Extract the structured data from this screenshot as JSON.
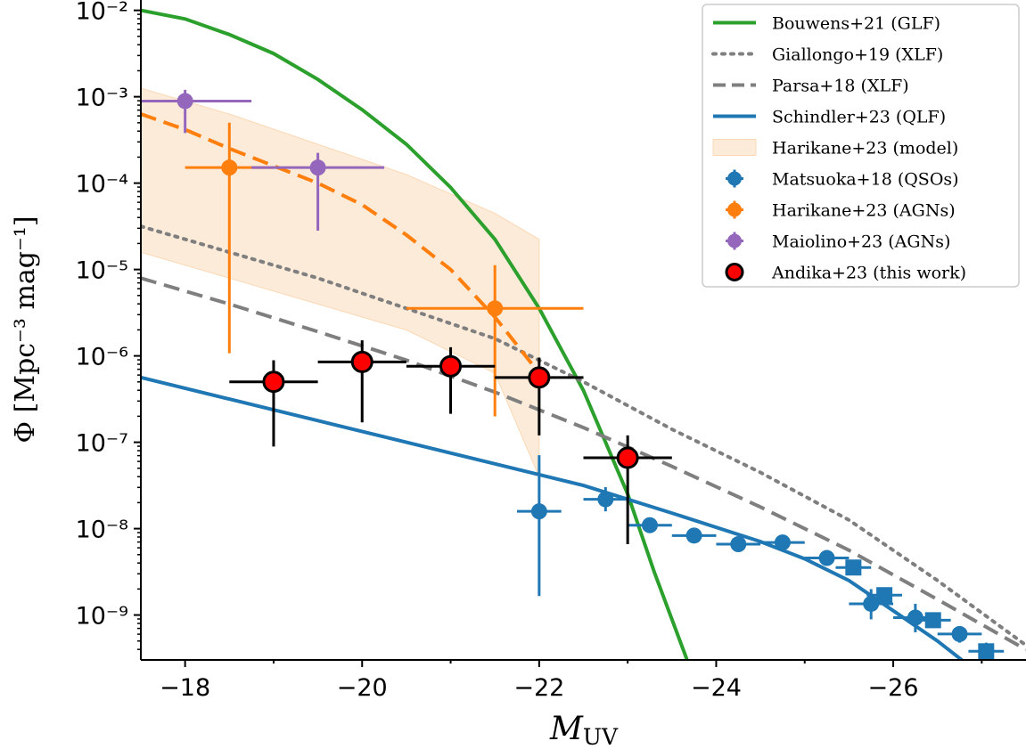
{
  "chart_data": {
    "type": "line",
    "xlabel": "M",
    "xlabel_sub": "UV",
    "ylabel": "Φ [Mpc⁻³ mag⁻¹]",
    "xlim": [
      -17.5,
      -27.5
    ],
    "ylim_log10": [
      -9.52,
      -1.88
    ],
    "y_scale": "log",
    "grid": false,
    "legend_position": "top-right",
    "x_ticks": [
      -18,
      -20,
      -22,
      -24,
      -26
    ],
    "x_tick_labels": [
      "−18",
      "−20",
      "−22",
      "−24",
      "−26"
    ],
    "y_ticks_log10": [
      -9,
      -8,
      -7,
      -6,
      -5,
      -4,
      -3,
      -2
    ],
    "y_tick_labels": [
      "10⁻⁹",
      "10⁻⁸",
      "10⁻⁷",
      "10⁻⁶",
      "10⁻⁵",
      "10⁻⁴",
      "10⁻³",
      "10⁻²"
    ],
    "curves": [
      {
        "name": "Bouwens+21 (GLF)",
        "color": "#2ca02c",
        "style": "solid",
        "points": [
          [
            -17.5,
            -2.0
          ],
          [
            -18.0,
            -2.1
          ],
          [
            -18.5,
            -2.28
          ],
          [
            -19.0,
            -2.5
          ],
          [
            -19.5,
            -2.8
          ],
          [
            -20.0,
            -3.15
          ],
          [
            -20.5,
            -3.55
          ],
          [
            -21.0,
            -4.05
          ],
          [
            -21.5,
            -4.65
          ],
          [
            -22.0,
            -5.45
          ],
          [
            -22.5,
            -6.4
          ],
          [
            -23.0,
            -7.6
          ],
          [
            -23.3,
            -8.5
          ],
          [
            -23.7,
            -9.6
          ]
        ]
      },
      {
        "name": "Giallongo+19 (XLF)",
        "color": "#7f7f7f",
        "style": "dotted",
        "points": [
          [
            -17.5,
            -4.5
          ],
          [
            -18.5,
            -4.8
          ],
          [
            -19.5,
            -5.1
          ],
          [
            -20.5,
            -5.45
          ],
          [
            -21.5,
            -5.8
          ],
          [
            -22.5,
            -6.3
          ],
          [
            -23.5,
            -6.85
          ],
          [
            -24.5,
            -7.35
          ],
          [
            -25.5,
            -7.9
          ],
          [
            -26.5,
            -8.6
          ],
          [
            -27.5,
            -9.35
          ]
        ]
      },
      {
        "name": "Parsa+18 (XLF)",
        "color": "#7f7f7f",
        "style": "dashed",
        "points": [
          [
            -17.5,
            -5.1
          ],
          [
            -18.5,
            -5.4
          ],
          [
            -19.5,
            -5.72
          ],
          [
            -20.5,
            -6.05
          ],
          [
            -21.5,
            -6.42
          ],
          [
            -22.5,
            -6.83
          ],
          [
            -23.5,
            -7.28
          ],
          [
            -24.5,
            -7.75
          ],
          [
            -25.5,
            -8.25
          ],
          [
            -26.5,
            -8.82
          ],
          [
            -27.5,
            -9.4
          ]
        ]
      },
      {
        "name": "Schindler+23 (QLF)",
        "color": "#1f77b4",
        "style": "solid",
        "points": [
          [
            -17.5,
            -6.25
          ],
          [
            -18.5,
            -6.5
          ],
          [
            -19.5,
            -6.75
          ],
          [
            -20.5,
            -7.0
          ],
          [
            -21.5,
            -7.25
          ],
          [
            -22.5,
            -7.5
          ],
          [
            -23.5,
            -7.82
          ],
          [
            -24.5,
            -8.15
          ],
          [
            -25.0,
            -8.35
          ],
          [
            -25.5,
            -8.6
          ],
          [
            -26.0,
            -8.95
          ],
          [
            -26.5,
            -9.3
          ],
          [
            -27.0,
            -9.7
          ]
        ]
      },
      {
        "name": "",
        "color": "#ff7f0e",
        "style": "dashed",
        "points": [
          [
            -17.5,
            -3.2
          ],
          [
            -18.0,
            -3.38
          ],
          [
            -18.5,
            -3.6
          ],
          [
            -19.0,
            -3.8
          ],
          [
            -19.5,
            -4.0
          ],
          [
            -20.0,
            -4.25
          ],
          [
            -20.5,
            -4.6
          ],
          [
            -21.0,
            -5.0
          ],
          [
            -21.5,
            -5.55
          ],
          [
            -22.0,
            -6.2
          ]
        ]
      }
    ],
    "band": {
      "name": "Harikane+23 (model)",
      "color": "#fdebd9",
      "upper": [
        [
          -17.5,
          -2.9
        ],
        [
          -18.5,
          -3.2
        ],
        [
          -19.5,
          -3.55
        ],
        [
          -20.5,
          -3.9
        ],
        [
          -21.5,
          -4.35
        ],
        [
          -22.0,
          -4.65
        ]
      ],
      "lower": [
        [
          -17.5,
          -4.8
        ],
        [
          -18.5,
          -5.1
        ],
        [
          -19.5,
          -5.4
        ],
        [
          -20.5,
          -5.7
        ],
        [
          -21.5,
          -6.2
        ],
        [
          -22.0,
          -7.4
        ]
      ]
    },
    "series": [
      {
        "name": "Matsuoka+18 (QSOs)",
        "color": "#1f77b4",
        "marker": "circle",
        "points": [
          {
            "x": -22.0,
            "y": -7.8,
            "xerr": 0.25,
            "ylo": -8.78,
            "yhi": -7.15
          },
          {
            "x": -22.75,
            "y": -7.66,
            "xerr": 0.25,
            "ylo": -7.8,
            "yhi": -7.52
          },
          {
            "x": -23.25,
            "y": -7.96,
            "xerr": 0.25,
            "ylo": -8.05,
            "yhi": -7.87
          },
          {
            "x": -23.75,
            "y": -8.08,
            "xerr": 0.25,
            "ylo": -8.16,
            "yhi": -8.0
          },
          {
            "x": -24.25,
            "y": -8.18,
            "xerr": 0.25,
            "ylo": -8.25,
            "yhi": -8.11
          },
          {
            "x": -24.75,
            "y": -8.16,
            "xerr": 0.25,
            "ylo": -8.22,
            "yhi": -8.1
          },
          {
            "x": -25.25,
            "y": -8.34,
            "xerr": 0.25,
            "ylo": -8.4,
            "yhi": -8.28
          },
          {
            "x": -25.75,
            "y": -8.87,
            "xerr": 0.25,
            "ylo": -9.05,
            "yhi": -8.7
          },
          {
            "x": -26.25,
            "y": -9.03,
            "xerr": 0.25,
            "ylo": -9.2,
            "yhi": -8.87
          },
          {
            "x": -26.75,
            "y": -9.22,
            "xerr": 0.25,
            "ylo": -9.32,
            "yhi": -9.13
          }
        ]
      },
      {
        "name": "",
        "color": "#1f77b4",
        "marker": "square",
        "points": [
          {
            "x": -25.55,
            "y": -8.45,
            "xerr": 0.2,
            "ylo": -8.52,
            "yhi": -8.38
          },
          {
            "x": -25.9,
            "y": -8.77,
            "xerr": 0.2,
            "ylo": -8.85,
            "yhi": -8.69
          },
          {
            "x": -26.45,
            "y": -9.06,
            "xerr": 0.2,
            "ylo": -9.14,
            "yhi": -8.98
          },
          {
            "x": -27.05,
            "y": -9.42,
            "xerr": 0.2,
            "ylo": -9.52,
            "yhi": -9.32
          }
        ]
      },
      {
        "name": "Harikane+23 (AGNs)",
        "color": "#ff7f0e",
        "marker": "circle",
        "points": [
          {
            "x": -18.5,
            "y": -3.82,
            "xerr": 0.5,
            "ylo": -5.97,
            "yhi": -3.3
          },
          {
            "x": -21.5,
            "y": -5.45,
            "xerr": 1.0,
            "ylo": -6.7,
            "yhi": -4.95
          }
        ]
      },
      {
        "name": "Maiolino+23 (AGNs)",
        "color": "#9467bd",
        "marker": "circle",
        "points": [
          {
            "x": -18.0,
            "y": -3.05,
            "xerr": 0.75,
            "ylo": -3.42,
            "yhi": -2.92
          },
          {
            "x": -19.5,
            "y": -3.82,
            "xerr": 0.75,
            "ylo": -4.55,
            "yhi": -3.65
          }
        ]
      },
      {
        "name": "Andika+23 (this work)",
        "color": "#ff0000",
        "marker": "circle-outlined",
        "points": [
          {
            "x": -19.0,
            "y": -6.3,
            "xerr": 0.5,
            "ylo": -7.05,
            "yhi": -6.05
          },
          {
            "x": -20.0,
            "y": -6.07,
            "xerr": 0.5,
            "ylo": -6.77,
            "yhi": -5.82
          },
          {
            "x": -21.0,
            "y": -6.12,
            "xerr": 0.5,
            "ylo": -6.67,
            "yhi": -5.9
          },
          {
            "x": -22.0,
            "y": -6.25,
            "xerr": 0.5,
            "ylo": -6.92,
            "yhi": -6.02
          },
          {
            "x": -23.0,
            "y": -7.18,
            "xerr": 0.5,
            "ylo": -8.18,
            "yhi": -6.92
          }
        ]
      }
    ],
    "legend": [
      {
        "label": "Bouwens+21 (GLF)",
        "kind": "line",
        "color": "#2ca02c",
        "style": "solid"
      },
      {
        "label": "Giallongo+19 (XLF)",
        "kind": "line",
        "color": "#7f7f7f",
        "style": "dotted"
      },
      {
        "label": "Parsa+18 (XLF)",
        "kind": "line",
        "color": "#7f7f7f",
        "style": "dashed"
      },
      {
        "label": "Schindler+23 (QLF)",
        "kind": "line",
        "color": "#1f77b4",
        "style": "solid"
      },
      {
        "label": "Harikane+23 (model)",
        "kind": "patch",
        "color": "#fdebd9"
      },
      {
        "label": "Matsuoka+18 (QSOs)",
        "kind": "errorbar",
        "color": "#1f77b4"
      },
      {
        "label": "Harikane+23 (AGNs)",
        "kind": "errorbar",
        "color": "#ff7f0e"
      },
      {
        "label": "Maiolino+23 (AGNs)",
        "kind": "errorbar",
        "color": "#9467bd"
      },
      {
        "label": "Andika+23 (this work)",
        "kind": "marker",
        "color": "#ff0000"
      }
    ]
  }
}
